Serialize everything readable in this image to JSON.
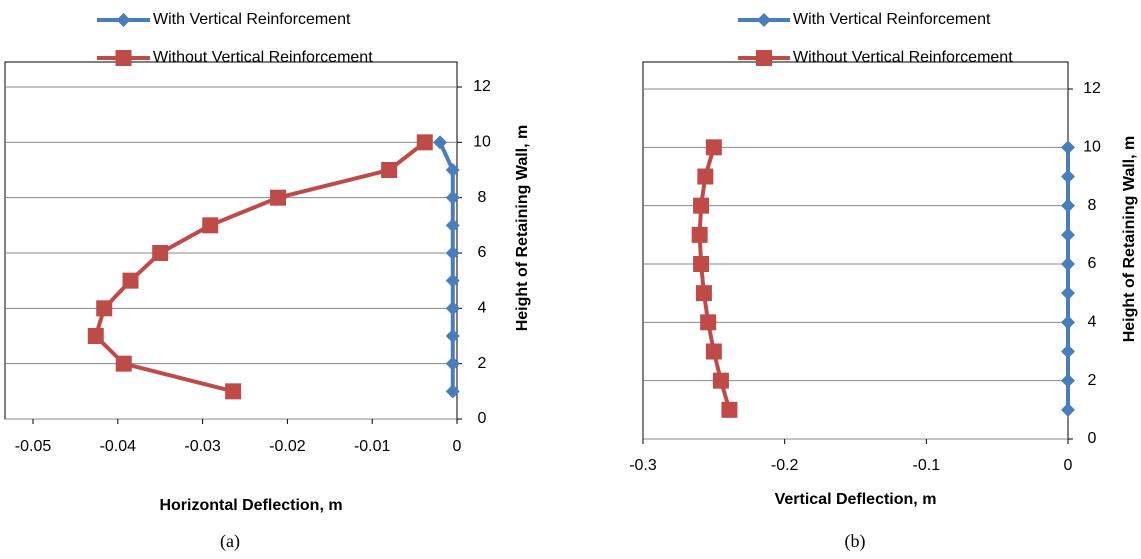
{
  "chart_data": [
    {
      "type": "line",
      "caption": "(a)",
      "xlabel": "Horizontal Deflection, m",
      "ylabel": "Height  of  Retaining  Wall, m",
      "y": [
        1,
        2,
        3,
        4,
        5,
        6,
        7,
        8,
        9,
        10
      ],
      "series": [
        {
          "name": "With Vertical Reinforcement",
          "color": "#4a7ebb",
          "marker": "diamond",
          "values": [
            -0.0005,
            -0.0005,
            -0.0005,
            -0.0005,
            -0.0005,
            -0.0005,
            -0.0005,
            -0.0005,
            -0.0005,
            -0.002
          ]
        },
        {
          "name": "Without Vertical Reinforcement",
          "color": "#be4b48",
          "marker": "square",
          "values": [
            -0.0264,
            -0.0393,
            -0.0426,
            -0.0416,
            -0.0385,
            -0.035,
            -0.0291,
            -0.0211,
            -0.008,
            -0.0038
          ]
        }
      ],
      "xlim": [
        -0.05,
        0
      ],
      "xticks": [
        -0.05,
        -0.04,
        -0.03,
        -0.02,
        -0.01,
        0
      ],
      "ylim": [
        0,
        12
      ],
      "yticks": [
        0,
        2,
        4,
        6,
        8,
        10,
        12
      ],
      "grid": true
    },
    {
      "type": "line",
      "caption": "(b)",
      "xlabel": "Vertical Deflection, m",
      "ylabel": "Height  of  Retaining  Wall, m",
      "y": [
        1,
        2,
        3,
        4,
        5,
        6,
        7,
        8,
        9,
        10
      ],
      "series": [
        {
          "name": "With Vertical Reinforcement",
          "color": "#4a7ebb",
          "marker": "diamond",
          "values": [
            0,
            0,
            0,
            0,
            0,
            0,
            0,
            0,
            0,
            0
          ]
        },
        {
          "name": "Without Vertical Reinforcement",
          "color": "#be4b48",
          "marker": "square",
          "values": [
            -0.239,
            -0.245,
            -0.25,
            -0.254,
            -0.257,
            -0.259,
            -0.26,
            -0.259,
            -0.256,
            -0.25
          ]
        }
      ],
      "xlim": [
        -0.3,
        0
      ],
      "xticks": [
        -0.3,
        -0.2,
        -0.1,
        0
      ],
      "ylim": [
        0,
        12
      ],
      "yticks": [
        0,
        2,
        4,
        6,
        8,
        10,
        12
      ],
      "grid": true
    }
  ]
}
